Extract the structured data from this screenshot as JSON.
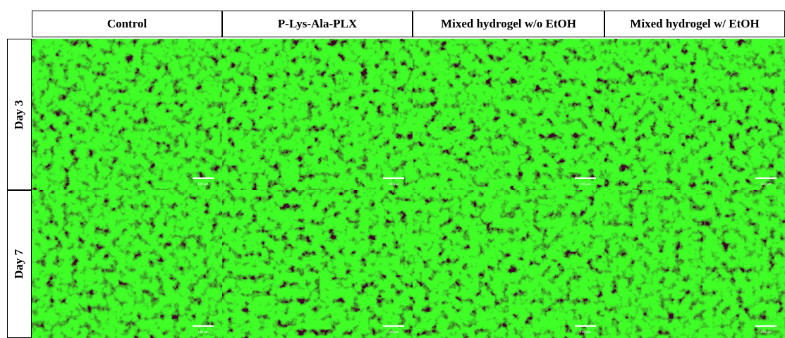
{
  "columns": [
    "Control",
    "P-Lys-Ala-PLX",
    "Mixed hydrogel w/o EtOH",
    "Mixed hydrogel w/ EtOH"
  ],
  "rows": [
    "Day 3",
    "Day 7"
  ],
  "scale_bar": "100 μm"
}
